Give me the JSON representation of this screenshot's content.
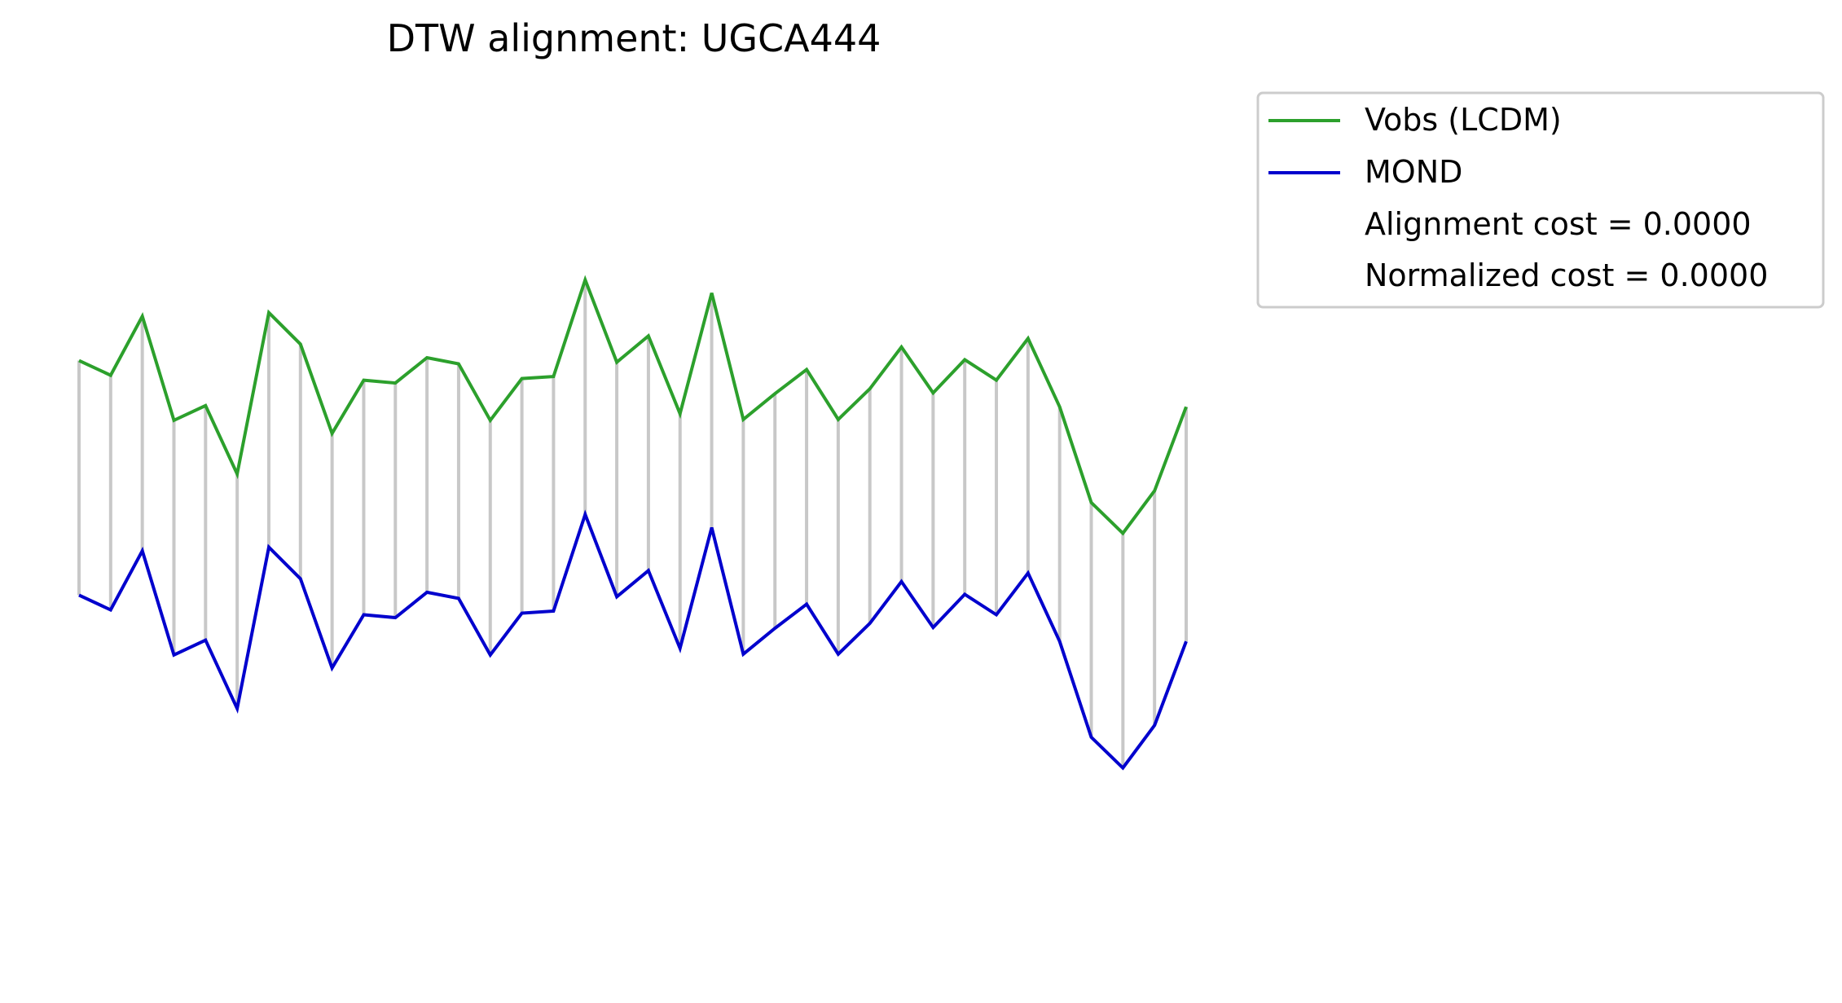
{
  "chart_data": {
    "type": "line",
    "title": "DTW alignment: UGCA444",
    "xlabel": "",
    "ylabel": "",
    "axes_visible": false,
    "grid": false,
    "x": [
      0,
      1,
      2,
      3,
      4,
      5,
      6,
      7,
      8,
      9,
      10,
      11,
      12,
      13,
      14,
      15,
      16,
      17,
      18,
      19,
      20,
      21,
      22,
      23,
      24,
      25,
      26,
      27,
      28,
      29,
      30,
      31,
      32,
      33,
      34,
      35
    ],
    "y_range": [
      -1.02,
      1.0
    ],
    "series": [
      {
        "name": "Vobs (LCDM)",
        "color": "#2ca02c",
        "values": [
          0.398,
          0.362,
          0.506,
          0.252,
          0.288,
          0.121,
          0.515,
          0.438,
          0.22,
          0.35,
          0.343,
          0.405,
          0.39,
          0.252,
          0.354,
          0.359,
          0.595,
          0.394,
          0.458,
          0.268,
          0.563,
          0.254,
          0.317,
          0.376,
          0.254,
          0.329,
          0.431,
          0.319,
          0.4,
          0.35,
          0.452,
          0.285,
          0.051,
          -0.024,
          0.08,
          0.285
        ]
      },
      {
        "name": "MOND",
        "color": "#0000cd",
        "values": [
          -0.175,
          -0.211,
          -0.067,
          -0.321,
          -0.285,
          -0.452,
          -0.058,
          -0.135,
          -0.353,
          -0.223,
          -0.23,
          -0.168,
          -0.183,
          -0.321,
          -0.219,
          -0.214,
          0.022,
          -0.179,
          -0.115,
          -0.305,
          -0.01,
          -0.319,
          -0.256,
          -0.197,
          -0.319,
          -0.244,
          -0.142,
          -0.254,
          -0.173,
          -0.223,
          -0.121,
          -0.288,
          -0.522,
          -0.597,
          -0.493,
          -0.288
        ]
      }
    ],
    "alignment_lines": {
      "color": "#c8c8c8",
      "pairs": "index-to-index"
    },
    "legend": {
      "placement": "outside upper right",
      "entries": [
        {
          "label": "Vobs (LCDM)",
          "color": "#2ca02c",
          "marker": "line"
        },
        {
          "label": "MOND",
          "color": "#0000cd",
          "marker": "line"
        },
        {
          "label": "Alignment cost = 0.0000",
          "marker": "none"
        },
        {
          "label": "Normalized cost = 0.0000",
          "marker": "none"
        }
      ]
    }
  }
}
